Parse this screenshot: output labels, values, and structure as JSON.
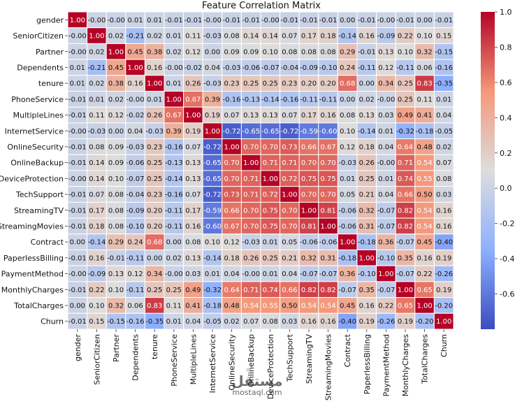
{
  "chart_data": {
    "type": "heatmap",
    "title": "Feature Correlation Matrix",
    "labels": [
      "gender",
      "SeniorCitizen",
      "Partner",
      "Dependents",
      "tenure",
      "PhoneService",
      "MultipleLines",
      "InternetService",
      "OnlineSecurity",
      "OnlineBackup",
      "DeviceProtection",
      "TechSupport",
      "StreamingTV",
      "StreamingMovies",
      "Contract",
      "PaperlessBilling",
      "PaymentMethod",
      "MonthlyCharges",
      "TotalCharges",
      "Churn"
    ],
    "values": [
      [
        "1.00",
        "-0.00",
        "-0.00",
        "0.01",
        "0.01",
        "-0.01",
        "-0.01",
        "-0.00",
        "-0.01",
        "-0.01",
        "-0.00",
        "-0.01",
        "-0.01",
        "-0.01",
        "0.00",
        "-0.01",
        "-0.00",
        "-0.01",
        "0.00",
        "-0.01"
      ],
      [
        "-0.00",
        "1.00",
        "0.02",
        "-0.21",
        "0.02",
        "0.01",
        "0.11",
        "-0.03",
        "0.08",
        "0.14",
        "0.14",
        "0.07",
        "0.17",
        "0.18",
        "-0.14",
        "0.16",
        "-0.09",
        "0.22",
        "0.10",
        "0.15"
      ],
      [
        "-0.00",
        "0.02",
        "1.00",
        "0.45",
        "0.38",
        "0.02",
        "0.12",
        "0.00",
        "0.09",
        "0.09",
        "0.10",
        "0.08",
        "0.08",
        "0.08",
        "0.29",
        "-0.01",
        "0.13",
        "0.10",
        "0.32",
        "-0.15"
      ],
      [
        "0.01",
        "-0.21",
        "0.45",
        "1.00",
        "0.16",
        "-0.00",
        "-0.02",
        "0.04",
        "-0.03",
        "-0.06",
        "-0.07",
        "-0.04",
        "-0.09",
        "-0.10",
        "0.24",
        "-0.11",
        "0.12",
        "-0.11",
        "0.06",
        "-0.16"
      ],
      [
        "0.01",
        "0.02",
        "0.38",
        "0.16",
        "1.00",
        "0.01",
        "0.26",
        "-0.03",
        "0.23",
        "0.25",
        "0.25",
        "0.23",
        "0.20",
        "0.20",
        "0.68",
        "0.00",
        "0.34",
        "0.25",
        "0.83",
        "-0.35"
      ],
      [
        "-0.01",
        "0.01",
        "0.02",
        "-0.00",
        "0.01",
        "1.00",
        "0.67",
        "0.39",
        "-0.16",
        "-0.13",
        "-0.14",
        "-0.16",
        "-0.11",
        "-0.11",
        "0.00",
        "0.02",
        "-0.00",
        "0.25",
        "0.11",
        "0.01"
      ],
      [
        "-0.01",
        "0.11",
        "0.12",
        "-0.02",
        "0.26",
        "0.67",
        "1.00",
        "0.19",
        "0.07",
        "0.13",
        "0.13",
        "0.07",
        "0.17",
        "0.16",
        "0.08",
        "0.13",
        "0.03",
        "0.49",
        "0.41",
        "0.04"
      ],
      [
        "-0.00",
        "-0.03",
        "0.00",
        "0.04",
        "-0.03",
        "0.39",
        "0.19",
        "1.00",
        "-0.72",
        "-0.65",
        "-0.65",
        "-0.72",
        "-0.59",
        "-0.60",
        "0.10",
        "-0.14",
        "0.01",
        "-0.32",
        "-0.18",
        "-0.05"
      ],
      [
        "-0.01",
        "0.08",
        "0.09",
        "-0.03",
        "0.23",
        "-0.16",
        "0.07",
        "-0.72",
        "1.00",
        "0.70",
        "0.70",
        "0.73",
        "0.66",
        "0.67",
        "0.12",
        "0.18",
        "0.04",
        "0.64",
        "0.48",
        "0.02"
      ],
      [
        "-0.01",
        "0.14",
        "0.09",
        "-0.06",
        "0.25",
        "-0.13",
        "0.13",
        "-0.65",
        "0.70",
        "1.00",
        "0.71",
        "0.71",
        "0.70",
        "0.70",
        "-0.03",
        "0.26",
        "-0.00",
        "0.71",
        "0.54",
        "0.07"
      ],
      [
        "-0.00",
        "0.14",
        "0.10",
        "-0.07",
        "0.25",
        "-0.14",
        "0.13",
        "-0.65",
        "0.70",
        "0.71",
        "1.00",
        "0.72",
        "0.75",
        "0.75",
        "0.01",
        "0.25",
        "0.01",
        "0.74",
        "0.55",
        "0.08"
      ],
      [
        "-0.01",
        "0.07",
        "0.08",
        "-0.04",
        "0.23",
        "-0.16",
        "0.07",
        "-0.72",
        "0.73",
        "0.71",
        "0.72",
        "1.00",
        "0.70",
        "0.70",
        "0.05",
        "0.21",
        "0.04",
        "0.66",
        "0.50",
        "0.03"
      ],
      [
        "-0.01",
        "0.17",
        "0.08",
        "-0.09",
        "0.20",
        "-0.11",
        "0.17",
        "-0.59",
        "0.66",
        "0.70",
        "0.75",
        "0.70",
        "1.00",
        "0.81",
        "-0.06",
        "0.32",
        "-0.07",
        "0.82",
        "0.54",
        "0.16"
      ],
      [
        "-0.01",
        "0.18",
        "0.08",
        "-0.10",
        "0.20",
        "-0.11",
        "0.16",
        "-0.60",
        "0.67",
        "0.70",
        "0.75",
        "0.70",
        "0.81",
        "1.00",
        "-0.06",
        "0.31",
        "-0.07",
        "0.82",
        "0.54",
        "0.16"
      ],
      [
        "0.00",
        "-0.14",
        "0.29",
        "0.24",
        "0.68",
        "0.00",
        "0.08",
        "0.10",
        "0.12",
        "-0.03",
        "0.01",
        "0.05",
        "-0.06",
        "-0.06",
        "1.00",
        "-0.18",
        "0.36",
        "-0.07",
        "0.45",
        "-0.40"
      ],
      [
        "-0.01",
        "0.16",
        "-0.01",
        "-0.11",
        "0.00",
        "0.02",
        "0.13",
        "-0.14",
        "0.18",
        "0.26",
        "0.25",
        "0.21",
        "0.32",
        "0.31",
        "-0.18",
        "1.00",
        "-0.10",
        "0.35",
        "0.16",
        "0.19"
      ],
      [
        "-0.00",
        "-0.09",
        "0.13",
        "0.12",
        "0.34",
        "-0.00",
        "0.03",
        "0.01",
        "0.04",
        "-0.00",
        "0.01",
        "0.04",
        "-0.07",
        "-0.07",
        "0.36",
        "-0.10",
        "1.00",
        "-0.07",
        "0.22",
        "-0.26"
      ],
      [
        "-0.01",
        "0.22",
        "0.10",
        "-0.11",
        "0.25",
        "0.25",
        "0.49",
        "-0.32",
        "0.64",
        "0.71",
        "0.74",
        "0.66",
        "0.82",
        "0.82",
        "-0.07",
        "0.35",
        "-0.07",
        "1.00",
        "0.65",
        "0.19"
      ],
      [
        "0.00",
        "0.10",
        "0.32",
        "0.06",
        "0.83",
        "0.11",
        "0.41",
        "-0.18",
        "0.48",
        "0.54",
        "0.55",
        "0.50",
        "0.54",
        "0.54",
        "0.45",
        "0.16",
        "0.22",
        "0.65",
        "1.00",
        "-0.20"
      ],
      [
        "-0.01",
        "0.15",
        "-0.15",
        "-0.16",
        "-0.35",
        "0.01",
        "0.04",
        "-0.05",
        "0.02",
        "0.07",
        "0.08",
        "0.03",
        "0.16",
        "0.16",
        "-0.40",
        "0.19",
        "-0.26",
        "0.19",
        "-0.20",
        "1.00"
      ]
    ],
    "colorbar": {
      "range": [
        -0.8,
        1.0
      ],
      "ticks": [
        "1.0",
        "0.8",
        "0.6",
        "0.4",
        "0.2",
        "0.0",
        "-0.2",
        "-0.4",
        "-0.6"
      ],
      "colormap": "coolwarm"
    },
    "annotations": {
      "watermark_logo": "مستقل",
      "watermark_text": "mostaql.com"
    }
  }
}
